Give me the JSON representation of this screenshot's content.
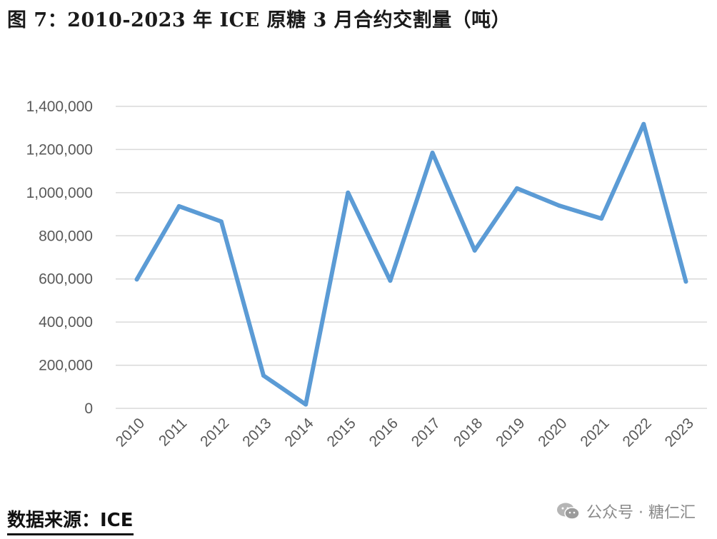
{
  "title": "图 7：2010-2023 年 ICE 原糖 3 月合约交割量（吨）",
  "source": "数据来源：ICE",
  "watermark": "公众号 · 糖仁汇",
  "colors": {
    "line": "#5B9BD5",
    "grid": "#D9D9D9",
    "tick": "#595959"
  },
  "chart_data": {
    "type": "line",
    "title": "2010-2023 年 ICE 原糖 3 月合约交割量（吨）",
    "xlabel": "",
    "ylabel": "",
    "categories": [
      "2010",
      "2011",
      "2012",
      "2013",
      "2014",
      "2015",
      "2016",
      "2017",
      "2018",
      "2019",
      "2020",
      "2021",
      "2022",
      "2023"
    ],
    "series": [
      {
        "name": "ICE 原糖 3 月合约交割量",
        "values": [
          598000,
          937000,
          866000,
          152000,
          18000,
          1000000,
          592000,
          1185000,
          732000,
          1020000,
          940000,
          880000,
          1318000,
          588000
        ]
      }
    ],
    "ylim": [
      0,
      1400000
    ],
    "yticks": [
      0,
      200000,
      400000,
      600000,
      800000,
      1000000,
      1200000,
      1400000
    ],
    "ytick_labels": [
      "0",
      "200,000",
      "400,000",
      "600,000",
      "800,000",
      "1,000,000",
      "1,200,000",
      "1,400,000"
    ],
    "grid": true,
    "legend": "none"
  }
}
